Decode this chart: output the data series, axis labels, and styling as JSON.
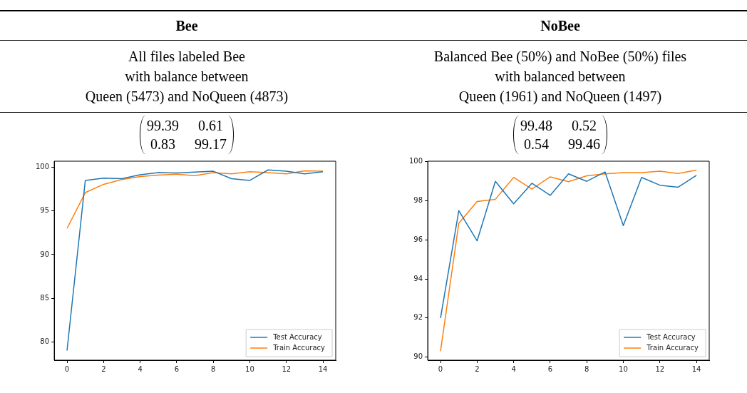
{
  "chart_data": [
    {
      "type": "line",
      "title": "Bee",
      "subtitle": "All files labeled Bee\nwith balance between\nQueen (5473) and NoQueen (4873)",
      "annotations": [
        "99.39",
        "0.61",
        "0.83",
        "99.17"
      ],
      "x": [
        0,
        1,
        2,
        3,
        4,
        5,
        6,
        7,
        8,
        9,
        10,
        11,
        12,
        13,
        14
      ],
      "xlim": [
        -0.7,
        14.7
      ],
      "xticks": [
        0,
        2,
        4,
        6,
        8,
        10,
        12,
        14
      ],
      "ylim": [
        77.9,
        100.7
      ],
      "yticks": [
        80,
        85,
        90,
        95,
        100
      ],
      "grid": false,
      "legend": "bottom right",
      "series": [
        {
          "name": "Test Accuracy",
          "color": "#1f77b4",
          "values": [
            79.0,
            98.5,
            98.75,
            98.7,
            99.15,
            99.4,
            99.35,
            99.45,
            99.55,
            98.7,
            98.5,
            99.7,
            99.55,
            99.25,
            99.5
          ]
        },
        {
          "name": "Train Accuracy",
          "color": "#ff7f0e",
          "values": [
            93.0,
            97.1,
            98.05,
            98.6,
            98.95,
            99.1,
            99.2,
            99.05,
            99.4,
            99.25,
            99.5,
            99.4,
            99.25,
            99.6,
            99.55
          ]
        }
      ]
    },
    {
      "type": "line",
      "title": "NoBee",
      "subtitle": "Balanced Bee (50%) and NoBee (50%) files\nwith balanced between\nQueen (1961) and NoQueen (1497)",
      "annotations": [
        "99.48",
        "0.52",
        "0.54",
        "99.46"
      ],
      "x": [
        0,
        1,
        2,
        3,
        4,
        5,
        6,
        7,
        8,
        9,
        10,
        11,
        12,
        13,
        14
      ],
      "xlim": [
        -0.7,
        14.7
      ],
      "xticks": [
        0,
        2,
        4,
        6,
        8,
        10,
        12,
        14
      ],
      "ylim": [
        89.84,
        100.03
      ],
      "yticks": [
        90,
        92,
        94,
        96,
        98,
        100
      ],
      "grid": false,
      "legend": "bottom right",
      "series": [
        {
          "name": "Test Accuracy",
          "color": "#1f77b4",
          "values": [
            92.0,
            97.5,
            95.95,
            99.0,
            97.85,
            98.9,
            98.28,
            99.38,
            99.0,
            99.48,
            96.73,
            99.2,
            98.8,
            98.7,
            99.3
          ]
        },
        {
          "name": "Train Accuracy",
          "color": "#ff7f0e",
          "values": [
            90.3,
            96.85,
            97.97,
            98.08,
            99.2,
            98.6,
            99.23,
            98.98,
            99.28,
            99.38,
            99.45,
            99.45,
            99.52,
            99.4,
            99.57
          ]
        }
      ]
    }
  ]
}
